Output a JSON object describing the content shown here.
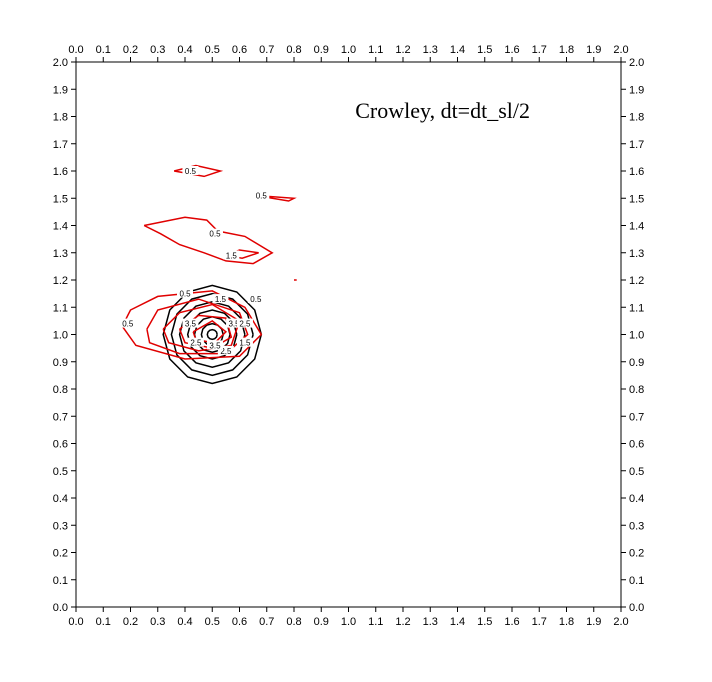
{
  "chart_data": {
    "type": "contour",
    "title": "Crowley, dt=dt_sl/2",
    "xlabel": "",
    "ylabel": "",
    "xlim": [
      0.0,
      2.0
    ],
    "ylim": [
      0.0,
      2.0
    ],
    "ticks": [
      "0.0",
      "0.1",
      "0.2",
      "0.3",
      "0.4",
      "0.5",
      "0.6",
      "0.7",
      "0.8",
      "0.9",
      "1.0",
      "1.1",
      "1.2",
      "1.3",
      "1.4",
      "1.5",
      "1.6",
      "1.7",
      "1.8",
      "1.9",
      "2.0"
    ],
    "grid": false,
    "series": [
      {
        "color": "#000000",
        "contours": [
          {
            "cx": 0.5,
            "cy": 1.0,
            "rx": 0.18,
            "ry": 0.18
          },
          {
            "cx": 0.5,
            "cy": 1.0,
            "rx": 0.15,
            "ry": 0.15
          },
          {
            "cx": 0.5,
            "cy": 1.0,
            "rx": 0.12,
            "ry": 0.12
          },
          {
            "cx": 0.5,
            "cy": 1.0,
            "rx": 0.09,
            "ry": 0.09
          },
          {
            "cx": 0.5,
            "cy": 1.0,
            "rx": 0.065,
            "ry": 0.065
          },
          {
            "cx": 0.5,
            "cy": 1.0,
            "rx": 0.04,
            "ry": 0.04
          },
          {
            "cx": 0.5,
            "cy": 1.0,
            "rx": 0.018,
            "ry": 0.018
          }
        ]
      },
      {
        "color": "#e00000",
        "contours": [
          {
            "points": [
              [
                0.17,
                1.03
              ],
              [
                0.2,
                1.09
              ],
              [
                0.3,
                1.14
              ],
              [
                0.5,
                1.16
              ],
              [
                0.62,
                1.1
              ],
              [
                0.68,
                1.0
              ],
              [
                0.6,
                0.92
              ],
              [
                0.4,
                0.91
              ],
              [
                0.22,
                0.96
              ],
              [
                0.17,
                1.03
              ]
            ]
          },
          {
            "points": [
              [
                0.26,
                1.02
              ],
              [
                0.3,
                1.09
              ],
              [
                0.45,
                1.13
              ],
              [
                0.6,
                1.08
              ],
              [
                0.63,
                1.0
              ],
              [
                0.55,
                0.93
              ],
              [
                0.38,
                0.93
              ],
              [
                0.27,
                0.97
              ],
              [
                0.26,
                1.02
              ]
            ]
          },
          {
            "points": [
              [
                0.32,
                1.02
              ],
              [
                0.38,
                1.08
              ],
              [
                0.5,
                1.11
              ],
              [
                0.6,
                1.05
              ],
              [
                0.57,
                0.96
              ],
              [
                0.45,
                0.94
              ],
              [
                0.34,
                0.97
              ],
              [
                0.32,
                1.02
              ]
            ]
          },
          {
            "points": [
              [
                0.38,
                1.02
              ],
              [
                0.45,
                1.07
              ],
              [
                0.55,
                1.06
              ],
              [
                0.57,
                0.99
              ],
              [
                0.5,
                0.95
              ],
              [
                0.4,
                0.97
              ],
              [
                0.38,
                1.02
              ]
            ]
          },
          {
            "points": [
              [
                0.43,
                1.01
              ],
              [
                0.5,
                1.05
              ],
              [
                0.55,
                1.01
              ],
              [
                0.51,
                0.97
              ],
              [
                0.44,
                0.98
              ],
              [
                0.43,
                1.01
              ]
            ]
          },
          {
            "points": [
              [
                0.25,
                1.4
              ],
              [
                0.4,
                1.43
              ],
              [
                0.48,
                1.42
              ],
              [
                0.52,
                1.38
              ],
              [
                0.62,
                1.36
              ],
              [
                0.72,
                1.3
              ],
              [
                0.65,
                1.26
              ],
              [
                0.55,
                1.27
              ],
              [
                0.47,
                1.3
              ],
              [
                0.38,
                1.33
              ],
              [
                0.31,
                1.37
              ],
              [
                0.25,
                1.4
              ]
            ]
          },
          {
            "points": [
              [
                0.55,
                1.29
              ],
              [
                0.6,
                1.31
              ],
              [
                0.67,
                1.3
              ],
              [
                0.61,
                1.28
              ],
              [
                0.55,
                1.29
              ]
            ]
          },
          {
            "points": [
              [
                0.36,
                1.6
              ],
              [
                0.44,
                1.62
              ],
              [
                0.53,
                1.6
              ],
              [
                0.47,
                1.58
              ],
              [
                0.36,
                1.6
              ]
            ]
          },
          {
            "points": [
              [
                0.66,
                1.51
              ],
              [
                0.8,
                1.5
              ],
              [
                0.78,
                1.49
              ],
              [
                0.66,
                1.51
              ]
            ]
          },
          {
            "points": [
              [
                0.8,
                1.2
              ],
              [
                0.81,
                1.2
              ]
            ]
          }
        ]
      }
    ],
    "contour_labels": [
      {
        "text": "0.5",
        "x": 0.42,
        "y": 1.6,
        "color": "#000000"
      },
      {
        "text": "0.5",
        "x": 0.68,
        "y": 1.51,
        "color": "#000000"
      },
      {
        "text": "0.5",
        "x": 0.51,
        "y": 1.37,
        "color": "#000000"
      },
      {
        "text": "1.5",
        "x": 0.57,
        "y": 1.29,
        "color": "#000000"
      },
      {
        "text": "0.5",
        "x": 0.19,
        "y": 1.04,
        "color": "#000000"
      },
      {
        "text": "0.5",
        "x": 0.4,
        "y": 1.15,
        "color": "#000000"
      },
      {
        "text": "1.5",
        "x": 0.53,
        "y": 1.13,
        "color": "#000000"
      },
      {
        "text": "3.5",
        "x": 0.42,
        "y": 1.04,
        "color": "#000000"
      },
      {
        "text": "3.5",
        "x": 0.58,
        "y": 1.04,
        "color": "#000000"
      },
      {
        "text": "2.5",
        "x": 0.62,
        "y": 1.04,
        "color": "#000000"
      },
      {
        "text": "2.5",
        "x": 0.44,
        "y": 0.97,
        "color": "#000000"
      },
      {
        "text": "2.5",
        "x": 0.55,
        "y": 0.94,
        "color": "#000000"
      },
      {
        "text": "3.5",
        "x": 0.51,
        "y": 0.96,
        "color": "#000000"
      },
      {
        "text": "1.5",
        "x": 0.62,
        "y": 0.97,
        "color": "#000000"
      },
      {
        "text": "0.5",
        "x": 0.66,
        "y": 1.13,
        "color": "#000000"
      }
    ]
  }
}
